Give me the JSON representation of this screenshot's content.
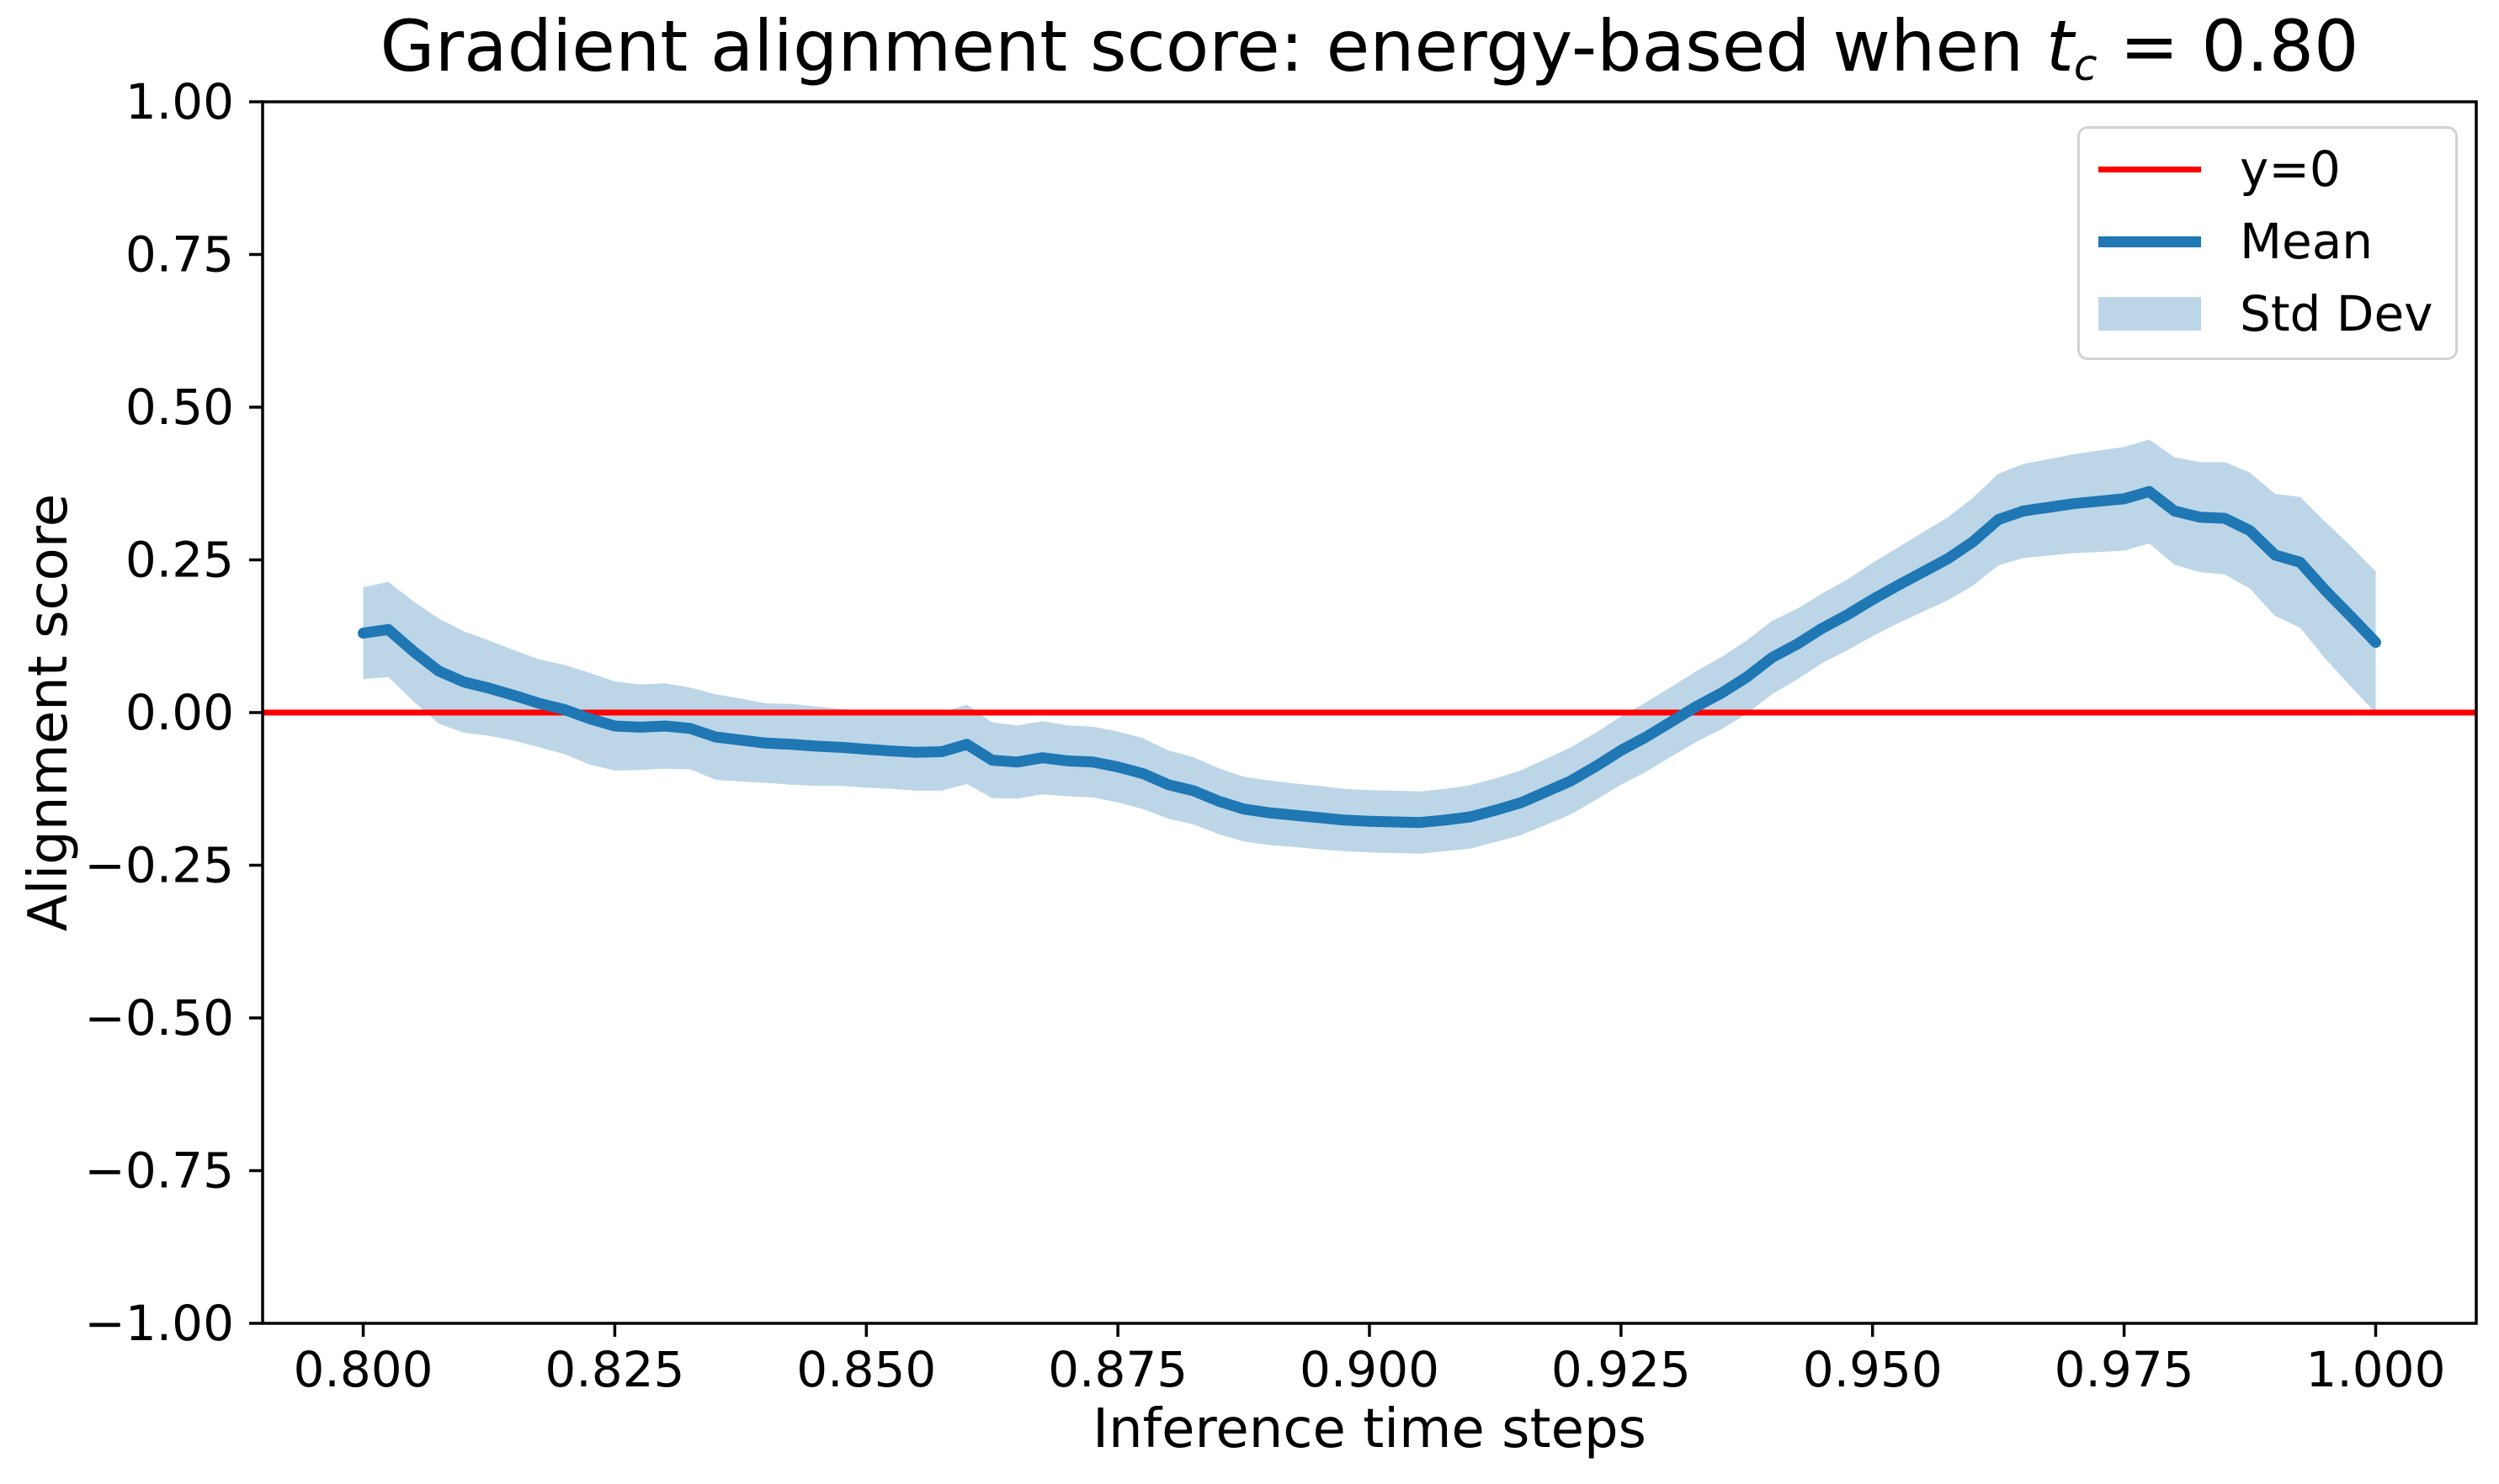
{
  "title": {
    "prefix": "Gradient alignment score: energy-based when ",
    "math_var": "t",
    "math_sub": "c",
    "suffix": " = 0.80"
  },
  "axes": {
    "xlabel": "Inference time steps",
    "ylabel": "Alignment score",
    "x_tick_labels": [
      "0.800",
      "0.825",
      "0.850",
      "0.875",
      "0.900",
      "0.925",
      "0.950",
      "0.975",
      "1.000"
    ],
    "y_tick_labels": [
      "−1.00",
      "−0.75",
      "−0.50",
      "−0.25",
      "0.00",
      "0.25",
      "0.50",
      "0.75",
      "1.00"
    ]
  },
  "legend": {
    "items": [
      {
        "label": "y=0",
        "swatch": "line",
        "color": "#ff0000",
        "thickness": 7
      },
      {
        "label": "Mean",
        "swatch": "line",
        "color": "#1f77b4",
        "thickness": 13
      },
      {
        "label": "Std Dev",
        "swatch": "patch",
        "color": "#bcd6e8",
        "thickness": 40
      }
    ]
  },
  "colors": {
    "mean_line": "#1f77b4",
    "std_band": "#bcd6e8",
    "zero_line": "#ff0000",
    "spine": "#000000",
    "background": "#ffffff"
  },
  "chart_data": {
    "type": "line",
    "title": "Gradient alignment score: energy-based when t_c = 0.80",
    "xlabel": "Inference time steps",
    "ylabel": "Alignment score",
    "xlim": [
      0.79,
      1.01
    ],
    "ylim": [
      -1.0,
      1.0
    ],
    "grid": false,
    "legend_position": "upper right",
    "x_ticks": [
      0.8,
      0.825,
      0.85,
      0.875,
      0.9,
      0.925,
      0.95,
      0.975,
      1.0
    ],
    "y_ticks": [
      -1.0,
      -0.75,
      -0.5,
      -0.25,
      0.0,
      0.25,
      0.5,
      0.75,
      1.0
    ],
    "annotations": [
      {
        "type": "hline",
        "y": 0,
        "label": "y=0",
        "color": "#ff0000"
      }
    ],
    "x": [
      0.8,
      0.8025,
      0.805,
      0.8075,
      0.81,
      0.8125,
      0.815,
      0.8175,
      0.82,
      0.8225,
      0.825,
      0.8275,
      0.83,
      0.8325,
      0.835,
      0.8375,
      0.84,
      0.8425,
      0.845,
      0.8475,
      0.85,
      0.8525,
      0.855,
      0.8575,
      0.86,
      0.8625,
      0.865,
      0.8675,
      0.87,
      0.8725,
      0.875,
      0.8775,
      0.88,
      0.8825,
      0.885,
      0.8875,
      0.89,
      0.8925,
      0.895,
      0.8975,
      0.9,
      0.9025,
      0.905,
      0.9075,
      0.91,
      0.9125,
      0.915,
      0.9175,
      0.92,
      0.9225,
      0.925,
      0.9275,
      0.93,
      0.9325,
      0.935,
      0.9375,
      0.94,
      0.9425,
      0.945,
      0.9475,
      0.95,
      0.9525,
      0.955,
      0.9575,
      0.96,
      0.9625,
      0.965,
      0.9675,
      0.97,
      0.9725,
      0.975,
      0.9775,
      0.98,
      0.9825,
      0.985,
      0.9875,
      0.99,
      0.9925,
      0.995,
      0.9975,
      1.0
    ],
    "series": [
      {
        "name": "Mean",
        "style": "line",
        "color": "#1f77b4",
        "values": [
          0.13,
          0.136,
          0.1,
          0.068,
          0.05,
          0.04,
          0.028,
          0.015,
          0.005,
          -0.01,
          -0.022,
          -0.024,
          -0.022,
          -0.026,
          -0.04,
          -0.045,
          -0.05,
          -0.052,
          -0.055,
          -0.057,
          -0.06,
          -0.063,
          -0.065,
          -0.064,
          -0.052,
          -0.078,
          -0.081,
          -0.074,
          -0.079,
          -0.081,
          -0.089,
          -0.1,
          -0.118,
          -0.128,
          -0.145,
          -0.158,
          -0.164,
          -0.168,
          -0.172,
          -0.176,
          -0.178,
          -0.179,
          -0.18,
          -0.176,
          -0.171,
          -0.16,
          -0.148,
          -0.13,
          -0.112,
          -0.088,
          -0.062,
          -0.04,
          -0.015,
          0.01,
          0.032,
          0.058,
          0.09,
          0.112,
          0.138,
          0.16,
          0.185,
          0.208,
          0.23,
          0.252,
          0.28,
          0.316,
          0.33,
          0.336,
          0.342,
          0.346,
          0.35,
          0.362,
          0.33,
          0.32,
          0.318,
          0.298,
          0.258,
          0.246,
          0.2,
          0.158,
          0.115
        ]
      },
      {
        "name": "Std Dev",
        "style": "band",
        "color": "#bcd6e8",
        "center_series": "Mean",
        "half_width": [
          0.075,
          0.078,
          0.082,
          0.086,
          0.083,
          0.078,
          0.074,
          0.072,
          0.073,
          0.075,
          0.073,
          0.07,
          0.07,
          0.067,
          0.07,
          0.068,
          0.065,
          0.066,
          0.065,
          0.063,
          0.063,
          0.062,
          0.063,
          0.064,
          0.065,
          0.062,
          0.06,
          0.06,
          0.058,
          0.058,
          0.058,
          0.058,
          0.056,
          0.055,
          0.054,
          0.053,
          0.053,
          0.052,
          0.052,
          0.051,
          0.051,
          0.051,
          0.051,
          0.051,
          0.052,
          0.052,
          0.053,
          0.054,
          0.055,
          0.055,
          0.056,
          0.057,
          0.057,
          0.058,
          0.059,
          0.06,
          0.06,
          0.058,
          0.057,
          0.058,
          0.06,
          0.062,
          0.065,
          0.068,
          0.072,
          0.075,
          0.077,
          0.079,
          0.081,
          0.083,
          0.085,
          0.085,
          0.088,
          0.09,
          0.092,
          0.095,
          0.1,
          0.107,
          0.112,
          0.115,
          0.116
        ]
      }
    ]
  }
}
